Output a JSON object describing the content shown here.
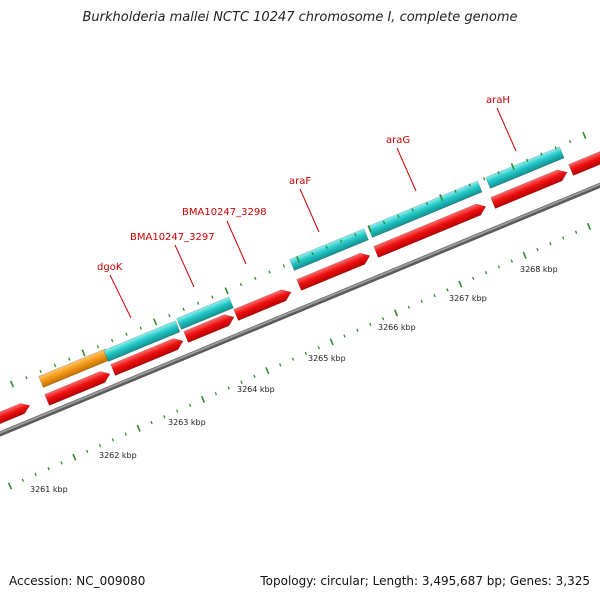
{
  "title": "Burkholderia mallei NCTC 10247 chromosome I, complete genome",
  "accession": "Accession: NC_009080",
  "stats": "Topology: circular; Length: 3,495,687 bp; Genes: 3,325",
  "colors": {
    "cds": "#ee1111",
    "rna": "#22c7c7",
    "highlight": "#f59a18",
    "backbone": "#7a7a7a",
    "tick": "#2e8b2e",
    "label": "#cc0000"
  },
  "scale_labels": [
    "3261 kbp",
    "3262 kbp",
    "3263 kbp",
    "3264 kbp",
    "3265 kbp",
    "3266 kbp",
    "3267 kbp",
    "3268 kbp"
  ],
  "gene_labels": [
    "dgoK",
    "BMA10247_3297",
    "BMA10247_3298",
    "araF",
    "araG",
    "araH"
  ]
}
